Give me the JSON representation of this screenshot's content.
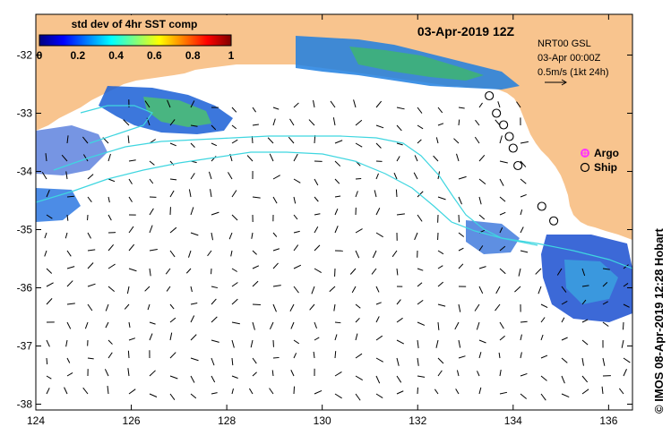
{
  "map": {
    "title": "03-Apr-2019 12Z",
    "x_ticks": [
      "124",
      "126",
      "128",
      "130",
      "132",
      "134",
      "136"
    ],
    "y_ticks": [
      "-32",
      "-33",
      "-34",
      "-35",
      "-36",
      "-37",
      "-38"
    ],
    "x_range": [
      124,
      136.5
    ],
    "y_range": [
      -31.3,
      -38.1
    ],
    "colors": {
      "land": "#f8c48e",
      "ocean": "#ffffff",
      "track": "#3fd6e0",
      "argo": "#ff33ff"
    }
  },
  "colorbar": {
    "title": "std dev of 4hr SST comp",
    "ticks": [
      "0",
      "0.2",
      "0.4",
      "0.6",
      "0.8",
      "1"
    ],
    "colormap": "jet"
  },
  "info": {
    "line1": "NRT00 GSL",
    "line2": "03-Apr 00:00Z",
    "line3": "0.5m/s (1kt 24h)"
  },
  "legend": {
    "argo": "Argo",
    "ship": "Ship"
  },
  "credit": "© IMOS 08-Apr-2019 12:28 Hobart",
  "ship_positions": [
    {
      "lon": 133.5,
      "lat": -32.7
    },
    {
      "lon": 133.65,
      "lat": -33.0
    },
    {
      "lon": 133.8,
      "lat": -33.2
    },
    {
      "lon": 133.92,
      "lat": -33.4
    },
    {
      "lon": 134.0,
      "lat": -33.6
    },
    {
      "lon": 134.1,
      "lat": -33.9
    },
    {
      "lon": 134.6,
      "lat": -34.6
    },
    {
      "lon": 134.85,
      "lat": -34.85
    }
  ]
}
